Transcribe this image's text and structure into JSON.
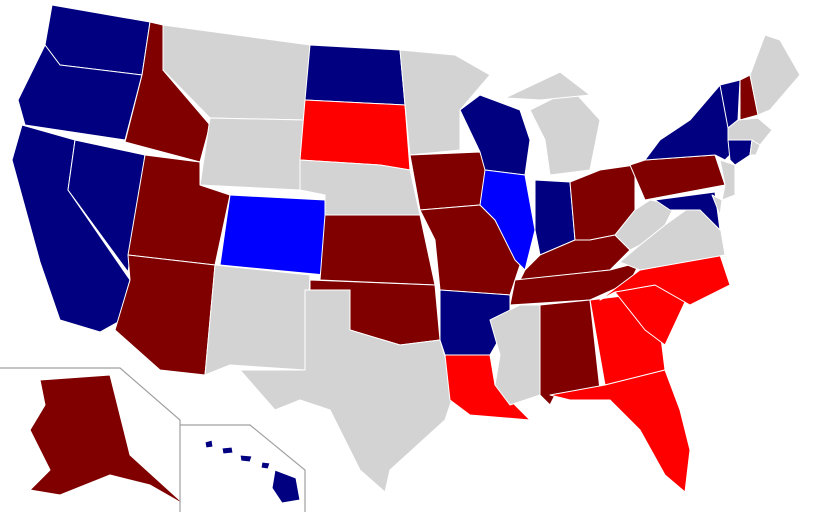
{
  "palette": {
    "dark_blue": "#000080",
    "blue": "#0000FF",
    "dark_red": "#800000",
    "red": "#FF0000",
    "gray": "#D3D3D3"
  },
  "states": {
    "WA": "dark_blue",
    "OR": "dark_blue",
    "CA": "dark_blue",
    "NV": "dark_blue",
    "ID": "dark_red",
    "MT": "gray",
    "WY": "gray",
    "UT": "dark_red",
    "AZ": "dark_red",
    "CO": "blue",
    "NM": "gray",
    "ND": "dark_blue",
    "SD": "red",
    "NE": "gray",
    "KS": "dark_red",
    "OK": "dark_red",
    "TX": "gray",
    "MN": "gray",
    "IA": "dark_red",
    "MO": "dark_red",
    "AR": "dark_blue",
    "LA": "red",
    "WI": "dark_blue",
    "IL": "blue",
    "MI": "gray",
    "IN": "dark_blue",
    "OH": "dark_red",
    "KY": "dark_red",
    "TN": "dark_red",
    "MS": "gray",
    "AL": "dark_red",
    "GA": "red",
    "FL": "red",
    "SC": "red",
    "NC": "red",
    "VA": "gray",
    "WV": "gray",
    "PA": "dark_red",
    "NY": "dark_blue",
    "VT": "dark_blue",
    "NH": "dark_red",
    "ME": "gray",
    "MA": "gray",
    "CT": "dark_blue",
    "RI": "gray",
    "NJ": "gray",
    "DE": "gray",
    "MD": "dark_blue",
    "AK": "dark_red",
    "HI": "dark_blue"
  }
}
